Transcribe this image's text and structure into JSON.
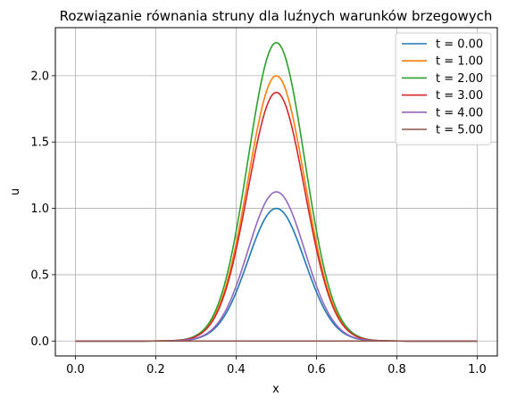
{
  "chart_data": {
    "type": "line",
    "title": "Rozwiązanie równania struny dla luźnych warunków brzegowych",
    "xlabel": "x",
    "ylabel": "u",
    "xlim": [
      -0.05,
      1.05
    ],
    "ylim": [
      -0.1125,
      2.3625
    ],
    "xticks": [
      0.0,
      0.2,
      0.4,
      0.6,
      0.8,
      1.0
    ],
    "xtick_labels": [
      "0.0",
      "0.2",
      "0.4",
      "0.6",
      "0.8",
      "1.0"
    ],
    "yticks": [
      0.0,
      0.5,
      1.0,
      1.5,
      2.0
    ],
    "ytick_labels": [
      "0.0",
      "0.5",
      "1.0",
      "1.5",
      "2.0"
    ],
    "grid": true,
    "legend_position": "top-right",
    "x_range": [
      0.0,
      1.0
    ],
    "curve_shape": "gaussian",
    "curve_center": 0.5,
    "curve_width": 0.1,
    "series": [
      {
        "name": "t = 0.00",
        "color": "#1f77b4",
        "peak": 1.0
      },
      {
        "name": "t = 1.00",
        "color": "#ff7f0e",
        "peak": 2.0
      },
      {
        "name": "t = 2.00",
        "color": "#2ca02c",
        "peak": 2.25
      },
      {
        "name": "t = 3.00",
        "color": "#d62728",
        "peak": 1.875
      },
      {
        "name": "t = 4.00",
        "color": "#9467bd",
        "peak": 1.125
      },
      {
        "name": "t = 5.00",
        "color": "#8c564b",
        "peak": 0.0
      }
    ]
  }
}
